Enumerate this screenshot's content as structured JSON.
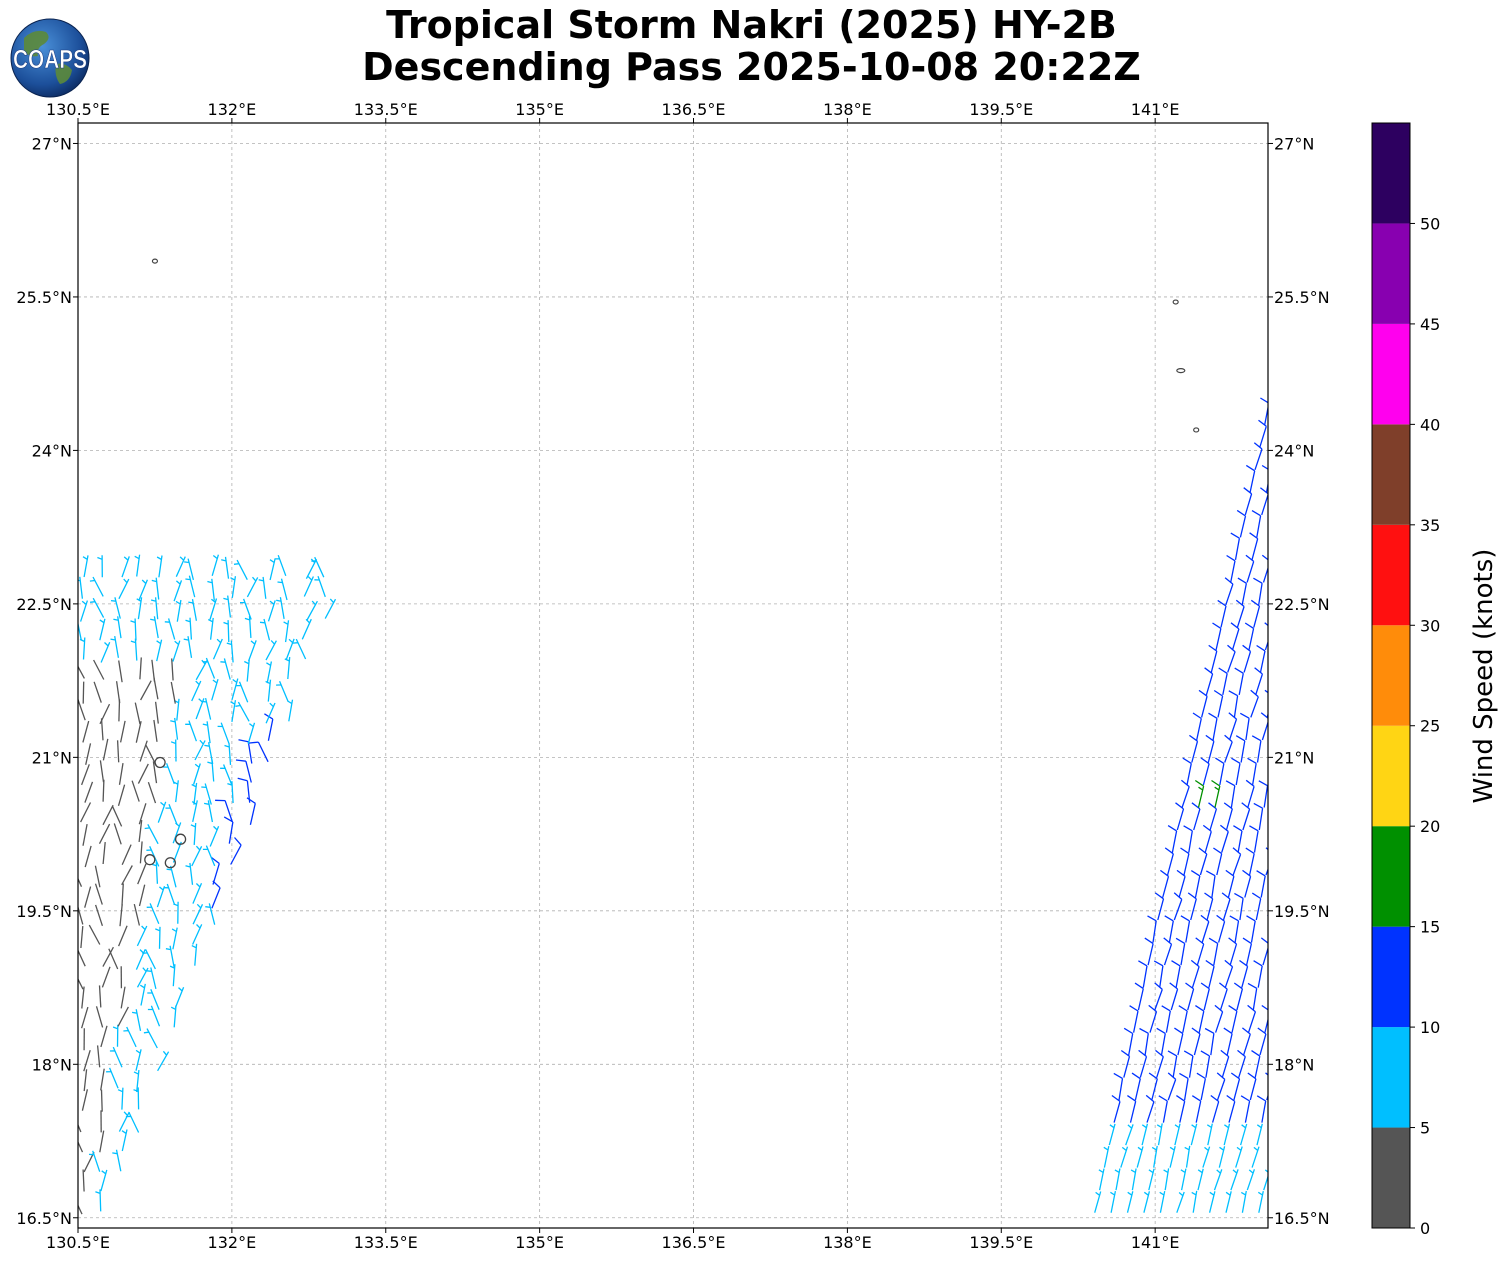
{
  "title": {
    "line1": "Tropical Storm Nakri (2025) HY-2B",
    "line2": "Descending Pass 2025-10-08 20:22Z"
  },
  "logo": {
    "text": "COAPS"
  },
  "map": {
    "lon_range": [
      130.5,
      142.1
    ],
    "lat_range": [
      16.4,
      27.2
    ],
    "lon_ticks": [
      130.5,
      132.0,
      133.5,
      135.0,
      136.5,
      138.0,
      139.5,
      141.0
    ],
    "lon_labels": [
      "130.5°E",
      "132°E",
      "133.5°E",
      "135°E",
      "136.5°E",
      "138°E",
      "139.5°E",
      "141°E"
    ],
    "lat_ticks": [
      16.5,
      18.0,
      19.5,
      21.0,
      22.5,
      24.0,
      25.5,
      27.0
    ],
    "lat_labels": [
      "16.5°N",
      "18°N",
      "19.5°N",
      "21°N",
      "22.5°N",
      "24°N",
      "25.5°N",
      "27°N"
    ],
    "grid": true,
    "grid_color": "#b0b0b0"
  },
  "colorbar": {
    "label": "Wind Speed (knots)",
    "tick_values": [
      0,
      5,
      10,
      15,
      20,
      25,
      30,
      35,
      40,
      45,
      50
    ],
    "tick_labels": [
      "0",
      "5",
      "10",
      "15",
      "20",
      "25",
      "30",
      "35",
      "40",
      "45",
      "50"
    ],
    "bins": [
      {
        "from": 0,
        "to": 5,
        "color": "#555555"
      },
      {
        "from": 5,
        "to": 10,
        "color": "#00bfff"
      },
      {
        "from": 10,
        "to": 15,
        "color": "#0033ff"
      },
      {
        "from": 15,
        "to": 20,
        "color": "#009000"
      },
      {
        "from": 20,
        "to": 25,
        "color": "#ffd514"
      },
      {
        "from": 25,
        "to": 30,
        "color": "#ff8c0a"
      },
      {
        "from": 30,
        "to": 35,
        "color": "#ff1010"
      },
      {
        "from": 35,
        "to": 40,
        "color": "#7f3f2a"
      },
      {
        "from": 40,
        "to": 45,
        "color": "#ff00ee"
      },
      {
        "from": 45,
        "to": 50,
        "color": "#8800b0"
      },
      {
        "from": 50,
        "to": 55,
        "color": "#2d0060"
      }
    ]
  },
  "chart_data": {
    "type": "scatter",
    "description_type": "wind barbs",
    "swaths": [
      {
        "name": "",
        "lon": [
          130.5,
          133.0
        ],
        "lat": [
          16.5,
          22.9
        ],
        "dominant_speeds_kt": [
          0,
          5,
          10
        ]
      },
      {
        "name": "",
        "lon": [
          140.4,
          142.1
        ],
        "lat": [
          16.5,
          24.4
        ],
        "dominant_speeds_kt": [
          5,
          10,
          15
        ]
      }
    ],
    "calm_points": [
      {
        "lon": 131.3,
        "lat": 20.95
      },
      {
        "lon": 131.5,
        "lat": 20.2
      },
      {
        "lon": 131.2,
        "lat": 20.0
      },
      {
        "lon": 131.4,
        "lat": 19.97
      }
    ],
    "islands": [
      {
        "lon": 131.25,
        "lat": 25.85
      },
      {
        "lon": 141.2,
        "lat": 25.45
      },
      {
        "lon": 141.25,
        "lat": 24.78
      },
      {
        "lon": 141.4,
        "lat": 24.2
      }
    ]
  }
}
